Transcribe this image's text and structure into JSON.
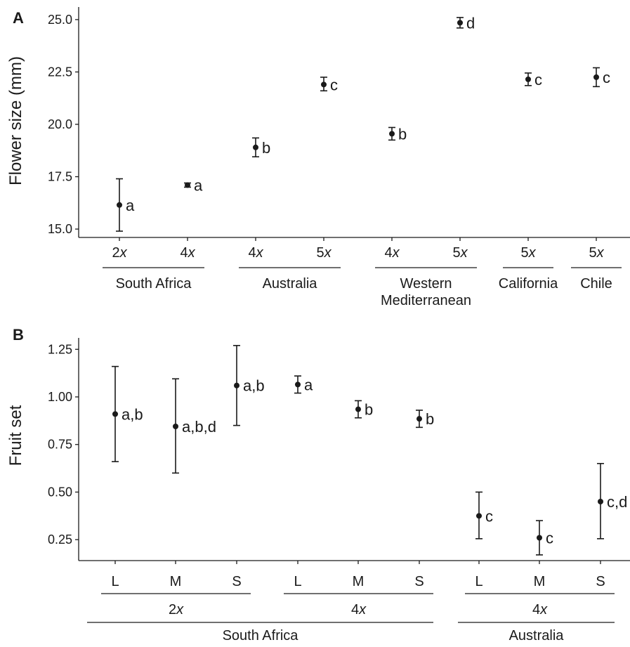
{
  "chart_data": [
    {
      "type": "scatter",
      "panel": "A",
      "ylabel": "Flower size (mm)",
      "ylim": [
        14.6,
        25.6
      ],
      "yticks": [
        "15.0",
        "17.5",
        "20.0",
        "22.5",
        "25.0"
      ],
      "grid": false,
      "points": [
        {
          "cat": "2x",
          "y": 16.15,
          "lo": 14.9,
          "hi": 17.4,
          "label": "a"
        },
        {
          "cat": "4x",
          "y": 17.1,
          "lo": 17.0,
          "hi": 17.2,
          "label": "a"
        },
        {
          "cat": "4x",
          "y": 18.9,
          "lo": 18.45,
          "hi": 19.35,
          "label": "b"
        },
        {
          "cat": "5x",
          "y": 21.9,
          "lo": 21.6,
          "hi": 22.25,
          "label": "c"
        },
        {
          "cat": "4x",
          "y": 19.55,
          "lo": 19.25,
          "hi": 19.85,
          "label": "b"
        },
        {
          "cat": "5x",
          "y": 24.85,
          "lo": 24.6,
          "hi": 25.1,
          "label": "d"
        },
        {
          "cat": "5x",
          "y": 22.15,
          "lo": 21.85,
          "hi": 22.45,
          "label": "c"
        },
        {
          "cat": "5x",
          "y": 22.25,
          "lo": 21.8,
          "hi": 22.7,
          "label": "c"
        }
      ],
      "groups": [
        {
          "label": "South Africa",
          "start": 0,
          "end": 1
        },
        {
          "label": "Australia",
          "start": 2,
          "end": 3
        },
        {
          "label": "Western\nMediterranean",
          "start": 4,
          "end": 5
        },
        {
          "label": "California",
          "start": 6,
          "end": 6
        },
        {
          "label": "Chile",
          "start": 7,
          "end": 7
        }
      ]
    },
    {
      "type": "scatter",
      "panel": "B",
      "ylabel": "Fruit set",
      "ylim": [
        0.14,
        1.31
      ],
      "yticks": [
        "0.25",
        "0.50",
        "0.75",
        "1.00",
        "1.25"
      ],
      "grid": false,
      "points": [
        {
          "cat": "L",
          "y": 0.91,
          "lo": 0.66,
          "hi": 1.16,
          "label": "a,b"
        },
        {
          "cat": "M",
          "y": 0.845,
          "lo": 0.6,
          "hi": 1.095,
          "label": "a,b,d"
        },
        {
          "cat": "S",
          "y": 1.06,
          "lo": 0.85,
          "hi": 1.27,
          "label": "a,b"
        },
        {
          "cat": "L",
          "y": 1.065,
          "lo": 1.02,
          "hi": 1.11,
          "label": "a"
        },
        {
          "cat": "M",
          "y": 0.935,
          "lo": 0.89,
          "hi": 0.98,
          "label": "b"
        },
        {
          "cat": "S",
          "y": 0.885,
          "lo": 0.84,
          "hi": 0.93,
          "label": "b"
        },
        {
          "cat": "L",
          "y": 0.375,
          "lo": 0.255,
          "hi": 0.5,
          "label": "c"
        },
        {
          "cat": "M",
          "y": 0.26,
          "lo": 0.17,
          "hi": 0.35,
          "label": "c"
        },
        {
          "cat": "S",
          "y": 0.45,
          "lo": 0.255,
          "hi": 0.65,
          "label": "c,d"
        }
      ],
      "subgroups": [
        {
          "label": "2x",
          "start": 0,
          "end": 2
        },
        {
          "label": "4x",
          "start": 3,
          "end": 5
        },
        {
          "label": "4x",
          "start": 6,
          "end": 8
        }
      ],
      "groups": [
        {
          "label": "South Africa",
          "start": 0,
          "end": 5
        },
        {
          "label": "Australia",
          "start": 6,
          "end": 8
        }
      ]
    }
  ]
}
